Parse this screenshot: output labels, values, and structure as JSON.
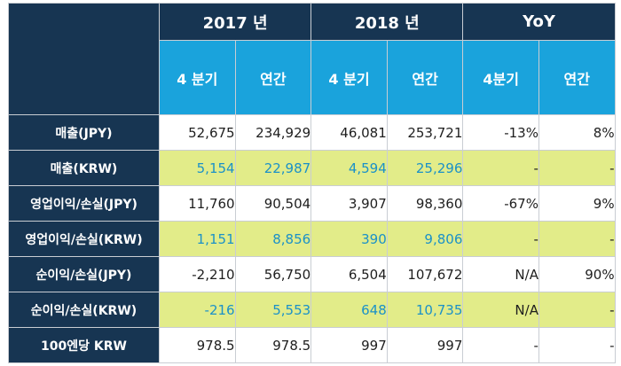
{
  "header": {
    "years": [
      "2017 년",
      "2018 년",
      "YoY"
    ],
    "sub": [
      "4 분기",
      "연간",
      "4 분기",
      "연간",
      "4분기",
      "연간"
    ]
  },
  "rows": [
    {
      "label": "매출(JPY)",
      "cells": [
        "52,675",
        "234,929",
        "46,081",
        "253,721",
        "-13%",
        "8%"
      ]
    },
    {
      "label": "매출(KRW)",
      "cells": [
        "5,154",
        "22,987",
        "4,594",
        "25,296",
        "-",
        "-"
      ]
    },
    {
      "label": "영업이익/손실(JPY)",
      "cells": [
        "11,760",
        "90,504",
        "3,907",
        "98,360",
        "-67%",
        "9%"
      ]
    },
    {
      "label": "영업이익/손실(KRW)",
      "cells": [
        "1,151",
        "8,856",
        "390",
        "9,806",
        "-",
        "-"
      ]
    },
    {
      "label": "순이익/손실(JPY)",
      "cells": [
        "-2,210",
        "56,750",
        "6,504",
        "107,672",
        "N/A",
        "90%"
      ]
    },
    {
      "label": "순이익/손실(KRW)",
      "cells": [
        "-216",
        "5,553",
        "648",
        "10,735",
        "N/A",
        "-"
      ]
    },
    {
      "label": "100엔당 KRW",
      "cells": [
        "978.5",
        "978.5",
        "997",
        "997",
        "-",
        "-"
      ]
    }
  ],
  "colors": {
    "navy": "#173552",
    "cyan": "#1aa3dc",
    "lime": "#e2ec89",
    "blue_text": "#1b91c8"
  }
}
